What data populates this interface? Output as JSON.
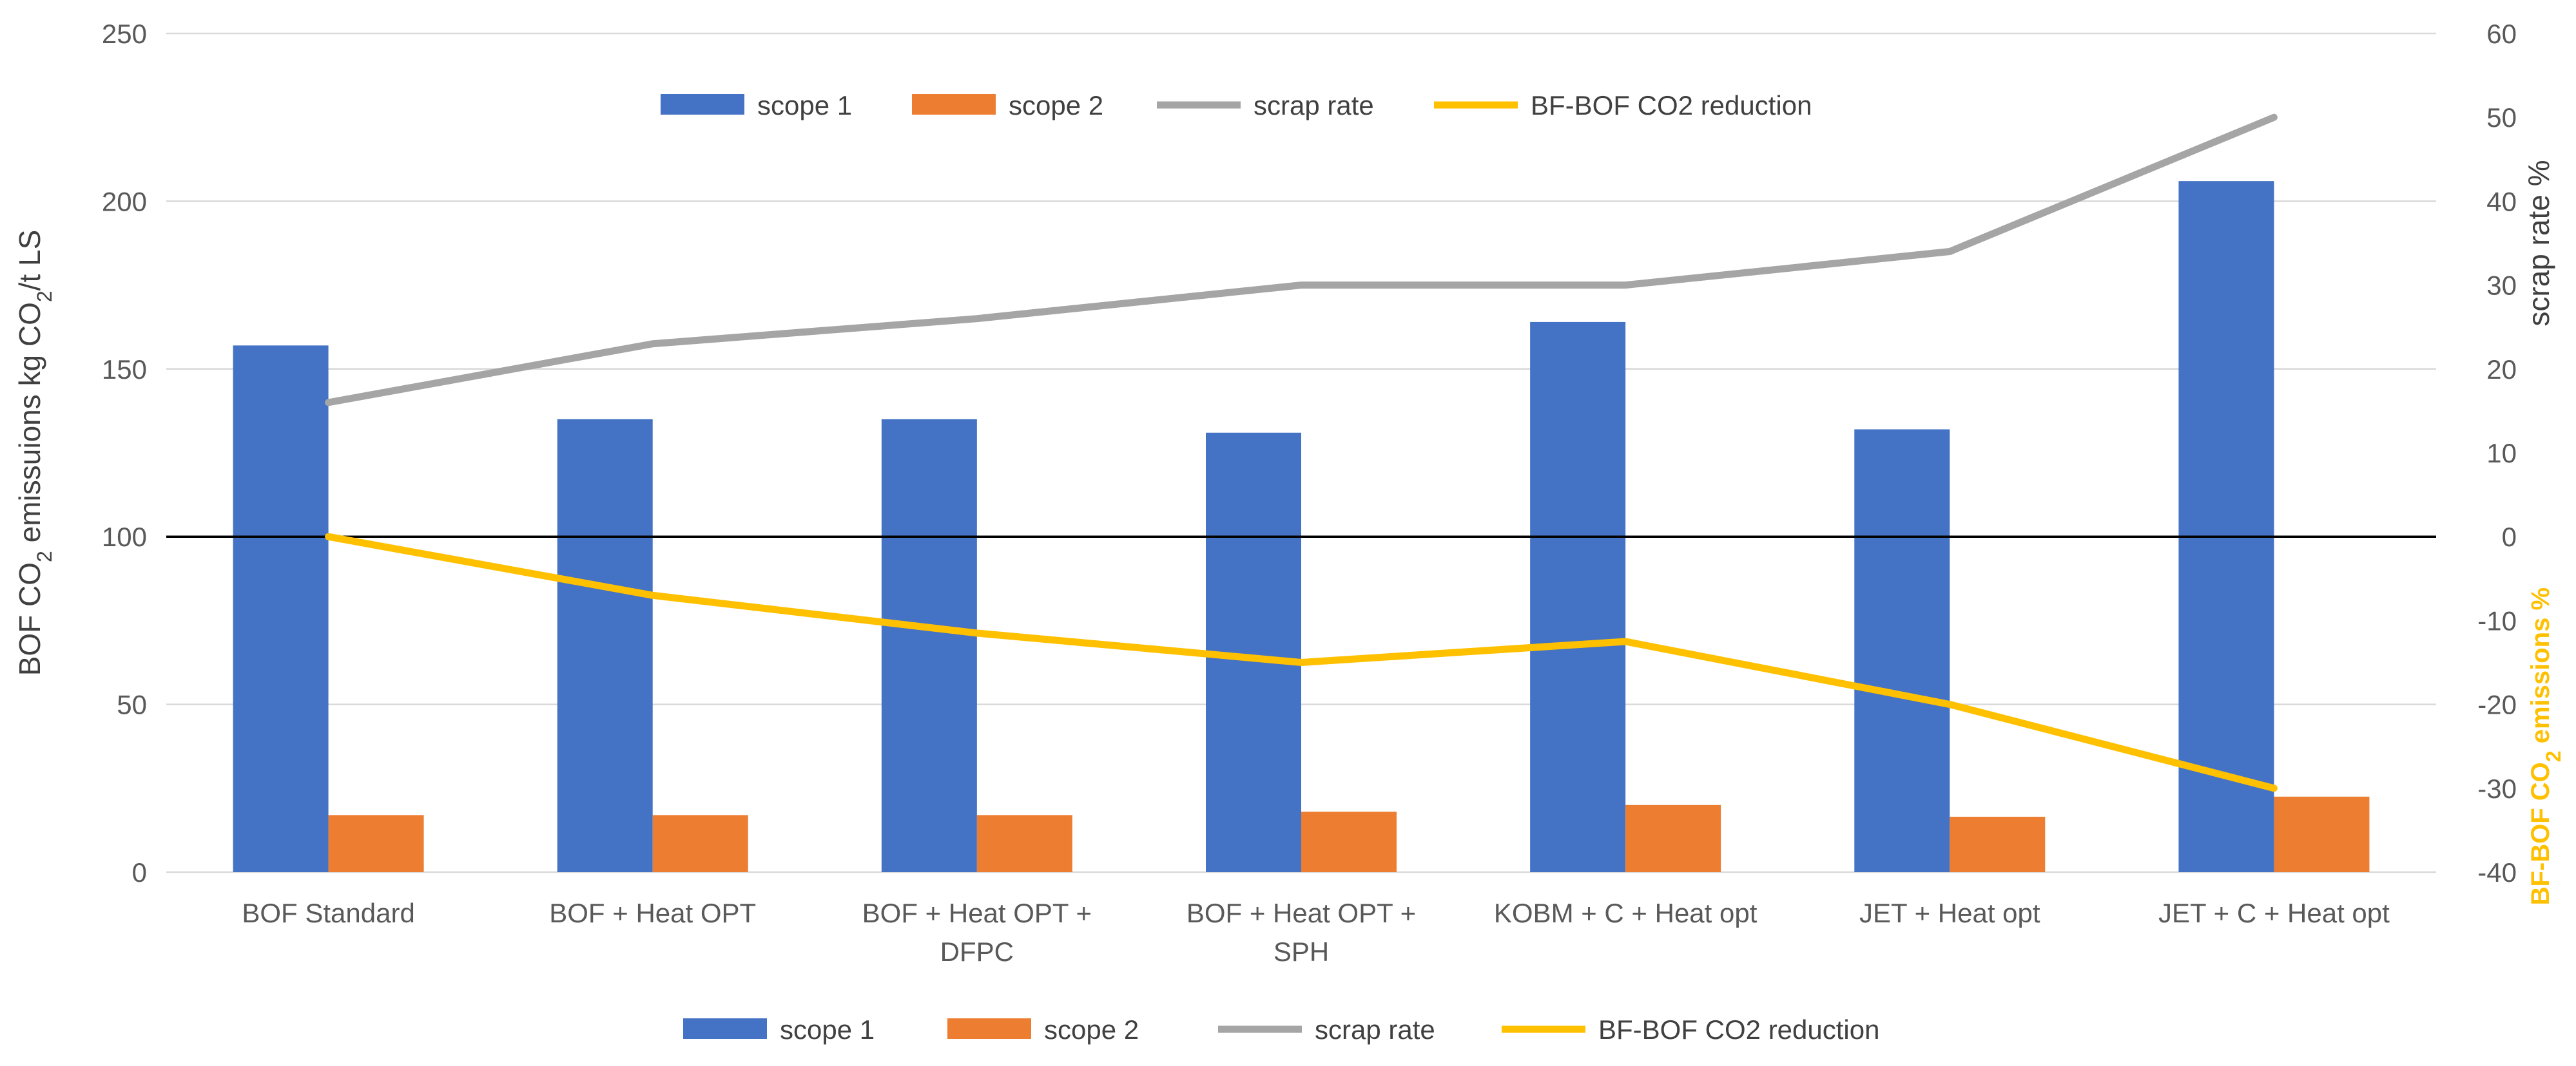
{
  "chart_data": {
    "type": "bar",
    "categories": [
      [
        "BOF Standard"
      ],
      [
        "BOF + Heat OPT"
      ],
      [
        "BOF + Heat OPT +",
        "DFPC"
      ],
      [
        "BOF + Heat OPT +",
        "SPH"
      ],
      [
        "KOBM + C + Heat opt"
      ],
      [
        "JET + Heat opt"
      ],
      [
        "JET + C + Heat opt"
      ]
    ],
    "series": [
      {
        "name": "scope 1",
        "kind": "bar",
        "axis": "left",
        "color": "#4472C4",
        "values": [
          157,
          135,
          135,
          131,
          164,
          132,
          206
        ]
      },
      {
        "name": "scope 2",
        "kind": "bar",
        "axis": "left",
        "color": "#ED7D31",
        "values": [
          17,
          17,
          17,
          18,
          20,
          16.5,
          22.5
        ]
      },
      {
        "name": "scrap rate",
        "kind": "line",
        "axis": "right",
        "color": "#A5A5A5",
        "values": [
          16,
          23,
          26,
          30,
          30,
          34,
          50
        ]
      },
      {
        "name": "BF-BOF CO2 reduction",
        "kind": "line",
        "axis": "right",
        "color": "#FFC000",
        "values": [
          0,
          -7,
          -11.5,
          -15,
          -12.5,
          -20,
          -30
        ]
      }
    ],
    "y_left": {
      "title_prefix": "BOF CO",
      "title_sub": "2",
      "title_suffix": " emissuions kg CO",
      "title_sub2": "2",
      "title_suffix2": "/t LS",
      "range": [
        0,
        250
      ],
      "ticks": [
        0,
        50,
        100,
        150,
        200,
        250
      ]
    },
    "y_right": {
      "title": "scrap rate %",
      "title2_prefix": "BF-BOF CO",
      "title2_sub": "2",
      "title2_suffix": " emissions %",
      "title2_color": "#FFC000",
      "range": [
        -40,
        60
      ],
      "ticks": [
        -40,
        -30,
        -20,
        -10,
        0,
        10,
        20,
        30,
        40,
        50,
        60
      ]
    },
    "reference_line": {
      "axis": "left",
      "value": 100,
      "color": "#000000"
    },
    "legend_top": [
      "scope 1",
      "scope 2",
      "scrap rate",
      "BF-BOF CO2 reduction"
    ],
    "legend_bottom": [
      "scope 1",
      "scope 2",
      "scrap rate",
      "BF-BOF CO2 reduction"
    ],
    "grid": true,
    "gridColor": "#D9D9D9"
  }
}
